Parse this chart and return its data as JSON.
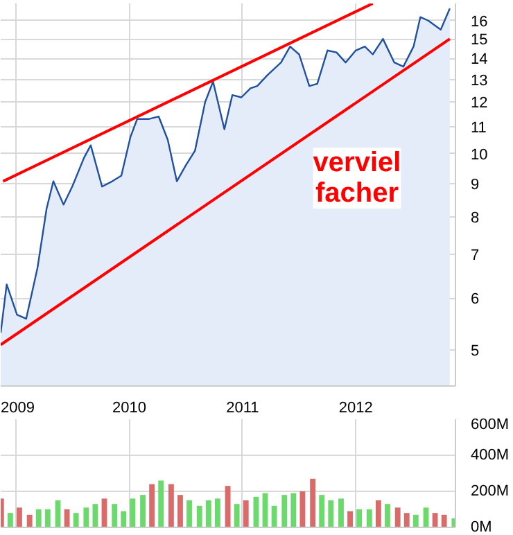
{
  "chart_data": [
    {
      "type": "area",
      "log": "y",
      "grid": true,
      "marker": "none",
      "line_style": "solid",
      "xlim": [
        2008.865,
        2012.88
      ],
      "xticks": [
        {
          "value": 2009,
          "label": "2009"
        },
        {
          "value": 2010,
          "label": "2010"
        },
        {
          "value": 2011,
          "label": "2011"
        },
        {
          "value": 2012,
          "label": "2012"
        }
      ],
      "ylim": [
        4.4,
        17.0
      ],
      "yticks": [
        5,
        6,
        7,
        8,
        9,
        10,
        11,
        12,
        13,
        14,
        15,
        16
      ],
      "annotations": [
        "verviel\nfacher"
      ],
      "series": [
        {
          "type": "area",
          "color": "#2050a0",
          "x": [
            2008.865,
            2008.918,
            2009.009,
            2009.09,
            2009.19,
            2009.27,
            2009.33,
            2009.42,
            2009.5,
            2009.6,
            2009.66,
            2009.76,
            2009.85,
            2009.93,
            2010.01,
            2010.07,
            2010.17,
            2010.26,
            2010.34,
            2010.42,
            2010.5,
            2010.58,
            2010.67,
            2010.74,
            2010.84,
            2010.91,
            2010.99,
            2011.07,
            2011.13,
            2011.22,
            2011.34,
            2011.42,
            2011.5,
            2011.59,
            2011.66,
            2011.75,
            2011.83,
            2011.91,
            2012.0,
            2012.08,
            2012.15,
            2012.24,
            2012.34,
            2012.42,
            2012.51,
            2012.57,
            2012.64,
            2012.75,
            2012.83
          ],
          "values": [
            5.31,
            6.3,
            5.66,
            5.58,
            6.68,
            8.23,
            9.07,
            8.35,
            8.93,
            9.85,
            10.3,
            8.9,
            9.07,
            9.25,
            10.6,
            11.3,
            11.3,
            11.4,
            10.5,
            9.07,
            9.6,
            10.1,
            12.0,
            12.9,
            10.9,
            12.3,
            12.2,
            12.6,
            12.7,
            13.2,
            13.8,
            14.6,
            14.2,
            12.7,
            12.8,
            14.4,
            14.3,
            13.8,
            14.4,
            14.6,
            14.2,
            15.0,
            13.8,
            13.6,
            14.6,
            16.2,
            16.0,
            15.5,
            16.7
          ]
        },
        {
          "type": "line",
          "color": "#ff0000",
          "x": [
            2008.886,
            2012.15
          ],
          "values": [
            9.07,
            17.0
          ]
        },
        {
          "type": "line",
          "color": "#ff0000",
          "x": [
            2008.865,
            2012.83
          ],
          "values": [
            5.09,
            15.0
          ]
        }
      ]
    },
    {
      "type": "bar",
      "grid": true,
      "tick_labels": "y",
      "xlim": [
        2008.865,
        2012.88
      ],
      "xticks": [
        {
          "value": 2009,
          "label": null
        },
        {
          "value": 2010,
          "label": null
        },
        {
          "value": 2011,
          "label": null
        },
        {
          "value": 2012,
          "label": null
        }
      ],
      "ylim": [
        0,
        600
      ],
      "yticks": [
        {
          "value": 0,
          "label": "0M"
        },
        {
          "value": 200,
          "label": "200M"
        },
        {
          "value": 400,
          "label": "400M"
        },
        {
          "value": 600,
          "label": "600M"
        }
      ],
      "x": [
        2008.87,
        2008.95,
        2009.03,
        2009.12,
        2009.2,
        2009.28,
        2009.37,
        2009.45,
        2009.53,
        2009.62,
        2009.7,
        2009.78,
        2009.87,
        2009.95,
        2010.03,
        2010.12,
        2010.2,
        2010.28,
        2010.37,
        2010.45,
        2010.53,
        2010.62,
        2010.7,
        2010.78,
        2010.87,
        2010.95,
        2011.03,
        2011.12,
        2011.2,
        2011.28,
        2011.37,
        2011.45,
        2011.53,
        2011.62,
        2011.7,
        2011.78,
        2011.87,
        2011.95,
        2012.03,
        2012.12,
        2012.2,
        2012.28,
        2012.37,
        2012.45,
        2012.53,
        2012.62,
        2012.7,
        2012.78,
        2012.87
      ],
      "values": [
        160,
        80,
        110,
        70,
        100,
        100,
        150,
        100,
        80,
        110,
        130,
        160,
        130,
        90,
        160,
        180,
        240,
        260,
        240,
        180,
        150,
        120,
        150,
        160,
        230,
        130,
        150,
        170,
        190,
        120,
        180,
        190,
        200,
        270,
        180,
        150,
        160,
        90,
        100,
        100,
        150,
        130,
        110,
        80,
        70,
        110,
        80,
        70,
        50
      ],
      "colors": [
        "#d96b6b",
        "#6cd96c",
        "#d96b6b",
        "#d96b6b",
        "#6cd96c",
        "#6cd96c",
        "#6cd96c",
        "#d96b6b",
        "#6cd96c",
        "#6cd96c",
        "#6cd96c",
        "#d96b6b",
        "#6cd96c",
        "#6cd96c",
        "#6cd96c",
        "#6cd96c",
        "#d96b6b",
        "#6cd96c",
        "#d96b6b",
        "#d96b6b",
        "#6cd96c",
        "#6cd96c",
        "#6cd96c",
        "#6cd96c",
        "#d96b6b",
        "#6cd96c",
        "#d96b6b",
        "#6cd96c",
        "#6cd96c",
        "#6cd96c",
        "#6cd96c",
        "#6cd96c",
        "#d96b6b",
        "#d96b6b",
        "#6cd96c",
        "#6cd96c",
        "#6cd96c",
        "#d96b6b",
        "#6cd96c",
        "#6cd96c",
        "#d96b6b",
        "#6cd96c",
        "#d96b6b",
        "#d96b6b",
        "#6cd96c",
        "#6cd96c",
        "#d96b6b",
        "#d96b6b",
        "#6cd96c"
      ]
    }
  ]
}
